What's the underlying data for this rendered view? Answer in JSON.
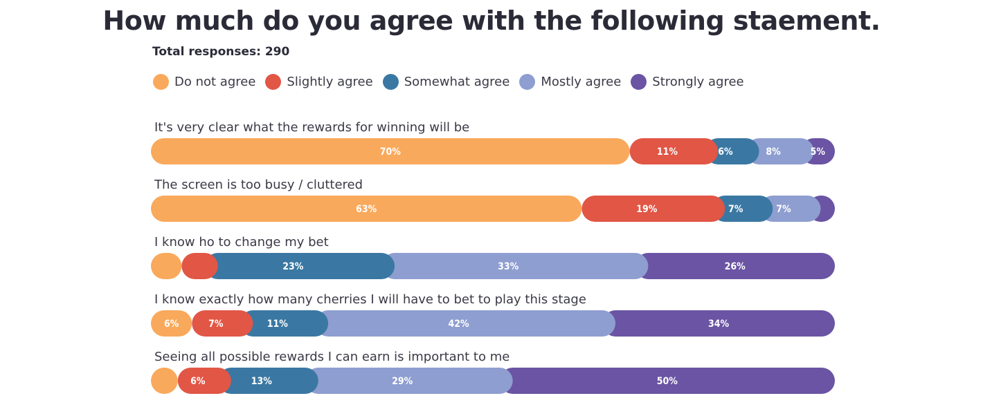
{
  "title": "How much do you agree with the following staement.",
  "subtitle": "Total responses: 290",
  "chart_data": {
    "type": "bar",
    "orientation": "horizontal-stacked-100",
    "title": "How much do you agree with the following staement.",
    "subtitle": "Total responses: 290",
    "legend_position": "top-left",
    "grid": false,
    "xlim": [
      0,
      100
    ],
    "series": [
      {
        "name": "Do not agree",
        "color": "#F9A95B"
      },
      {
        "name": "Slightly agree",
        "color": "#E15645"
      },
      {
        "name": "Somewhat agree",
        "color": "#3A78A3"
      },
      {
        "name": "Mostly agree",
        "color": "#8E9ED0"
      },
      {
        "name": "Strongly agree",
        "color": "#6A54A3"
      }
    ],
    "categories": [
      "It's very clear what the rewards for winning will be",
      "The screen is too busy / cluttered",
      "I know ho to change my bet",
      "I know exactly how many cherries I will have to bet to play this stage",
      "Seeing all possible rewards I can earn is important to me"
    ],
    "values": [
      [
        70,
        11,
        6,
        8,
        5
      ],
      [
        63,
        19,
        7,
        7,
        4
      ],
      [
        4,
        3,
        23,
        33,
        26
      ],
      [
        6,
        7,
        11,
        42,
        34
      ],
      [
        4,
        6,
        13,
        29,
        50
      ]
    ],
    "labels": [
      [
        "70%",
        "11%",
        "6%",
        "8%",
        "5%"
      ],
      [
        "63%",
        "19%",
        "7%",
        "7%",
        ""
      ],
      [
        "",
        "",
        "23%",
        "33%",
        "26%"
      ],
      [
        "6%",
        "7%",
        "11%",
        "42%",
        "34%"
      ],
      [
        "",
        "6%",
        "13%",
        "29%",
        "50%"
      ]
    ]
  }
}
